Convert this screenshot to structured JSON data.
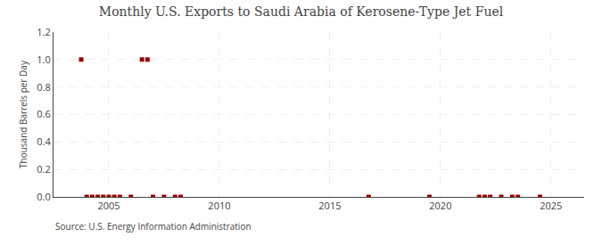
{
  "chart_data": {
    "type": "scatter",
    "title": "Monthly U.S. Exports to Saudi Arabia of Kerosene-Type Jet Fuel",
    "y_label": "Thousand Barrels per Day",
    "annotations": [
      "Source: U.S. Energy Information Administration"
    ],
    "x": [
      2003.75,
      2006.5,
      2006.75,
      2004.0,
      2004.25,
      2004.5,
      2004.75,
      2005.0,
      2005.25,
      2005.5,
      2006.0,
      2007.0,
      2007.5,
      2008.0,
      2008.25,
      2016.75,
      2019.5,
      2021.75,
      2022.0,
      2022.25,
      2022.75,
      2023.25,
      2023.5,
      2024.5
    ],
    "values": [
      1.0,
      1.0,
      1.0,
      0.0,
      0.0,
      0.0,
      0.0,
      0.0,
      0.0,
      0.0,
      0.0,
      0.0,
      0.0,
      0.0,
      0.0,
      0.0,
      0.0,
      0.0,
      0.0,
      0.0,
      0.0,
      0.0,
      0.0,
      0.0
    ],
    "color": "#990000",
    "marker": "square",
    "xlim": [
      2002.5,
      2026.5
    ],
    "xticks": [
      2005,
      2010,
      2015,
      2020,
      2025
    ],
    "ylim": [
      0,
      1.2
    ],
    "yticks": [
      {
        "value": 0.0,
        "label": "0.0"
      },
      0.2,
      0.4,
      0.6,
      0.8,
      {
        "value": 1.0,
        "label": "1.0"
      },
      1.2
    ],
    "grid": true
  }
}
